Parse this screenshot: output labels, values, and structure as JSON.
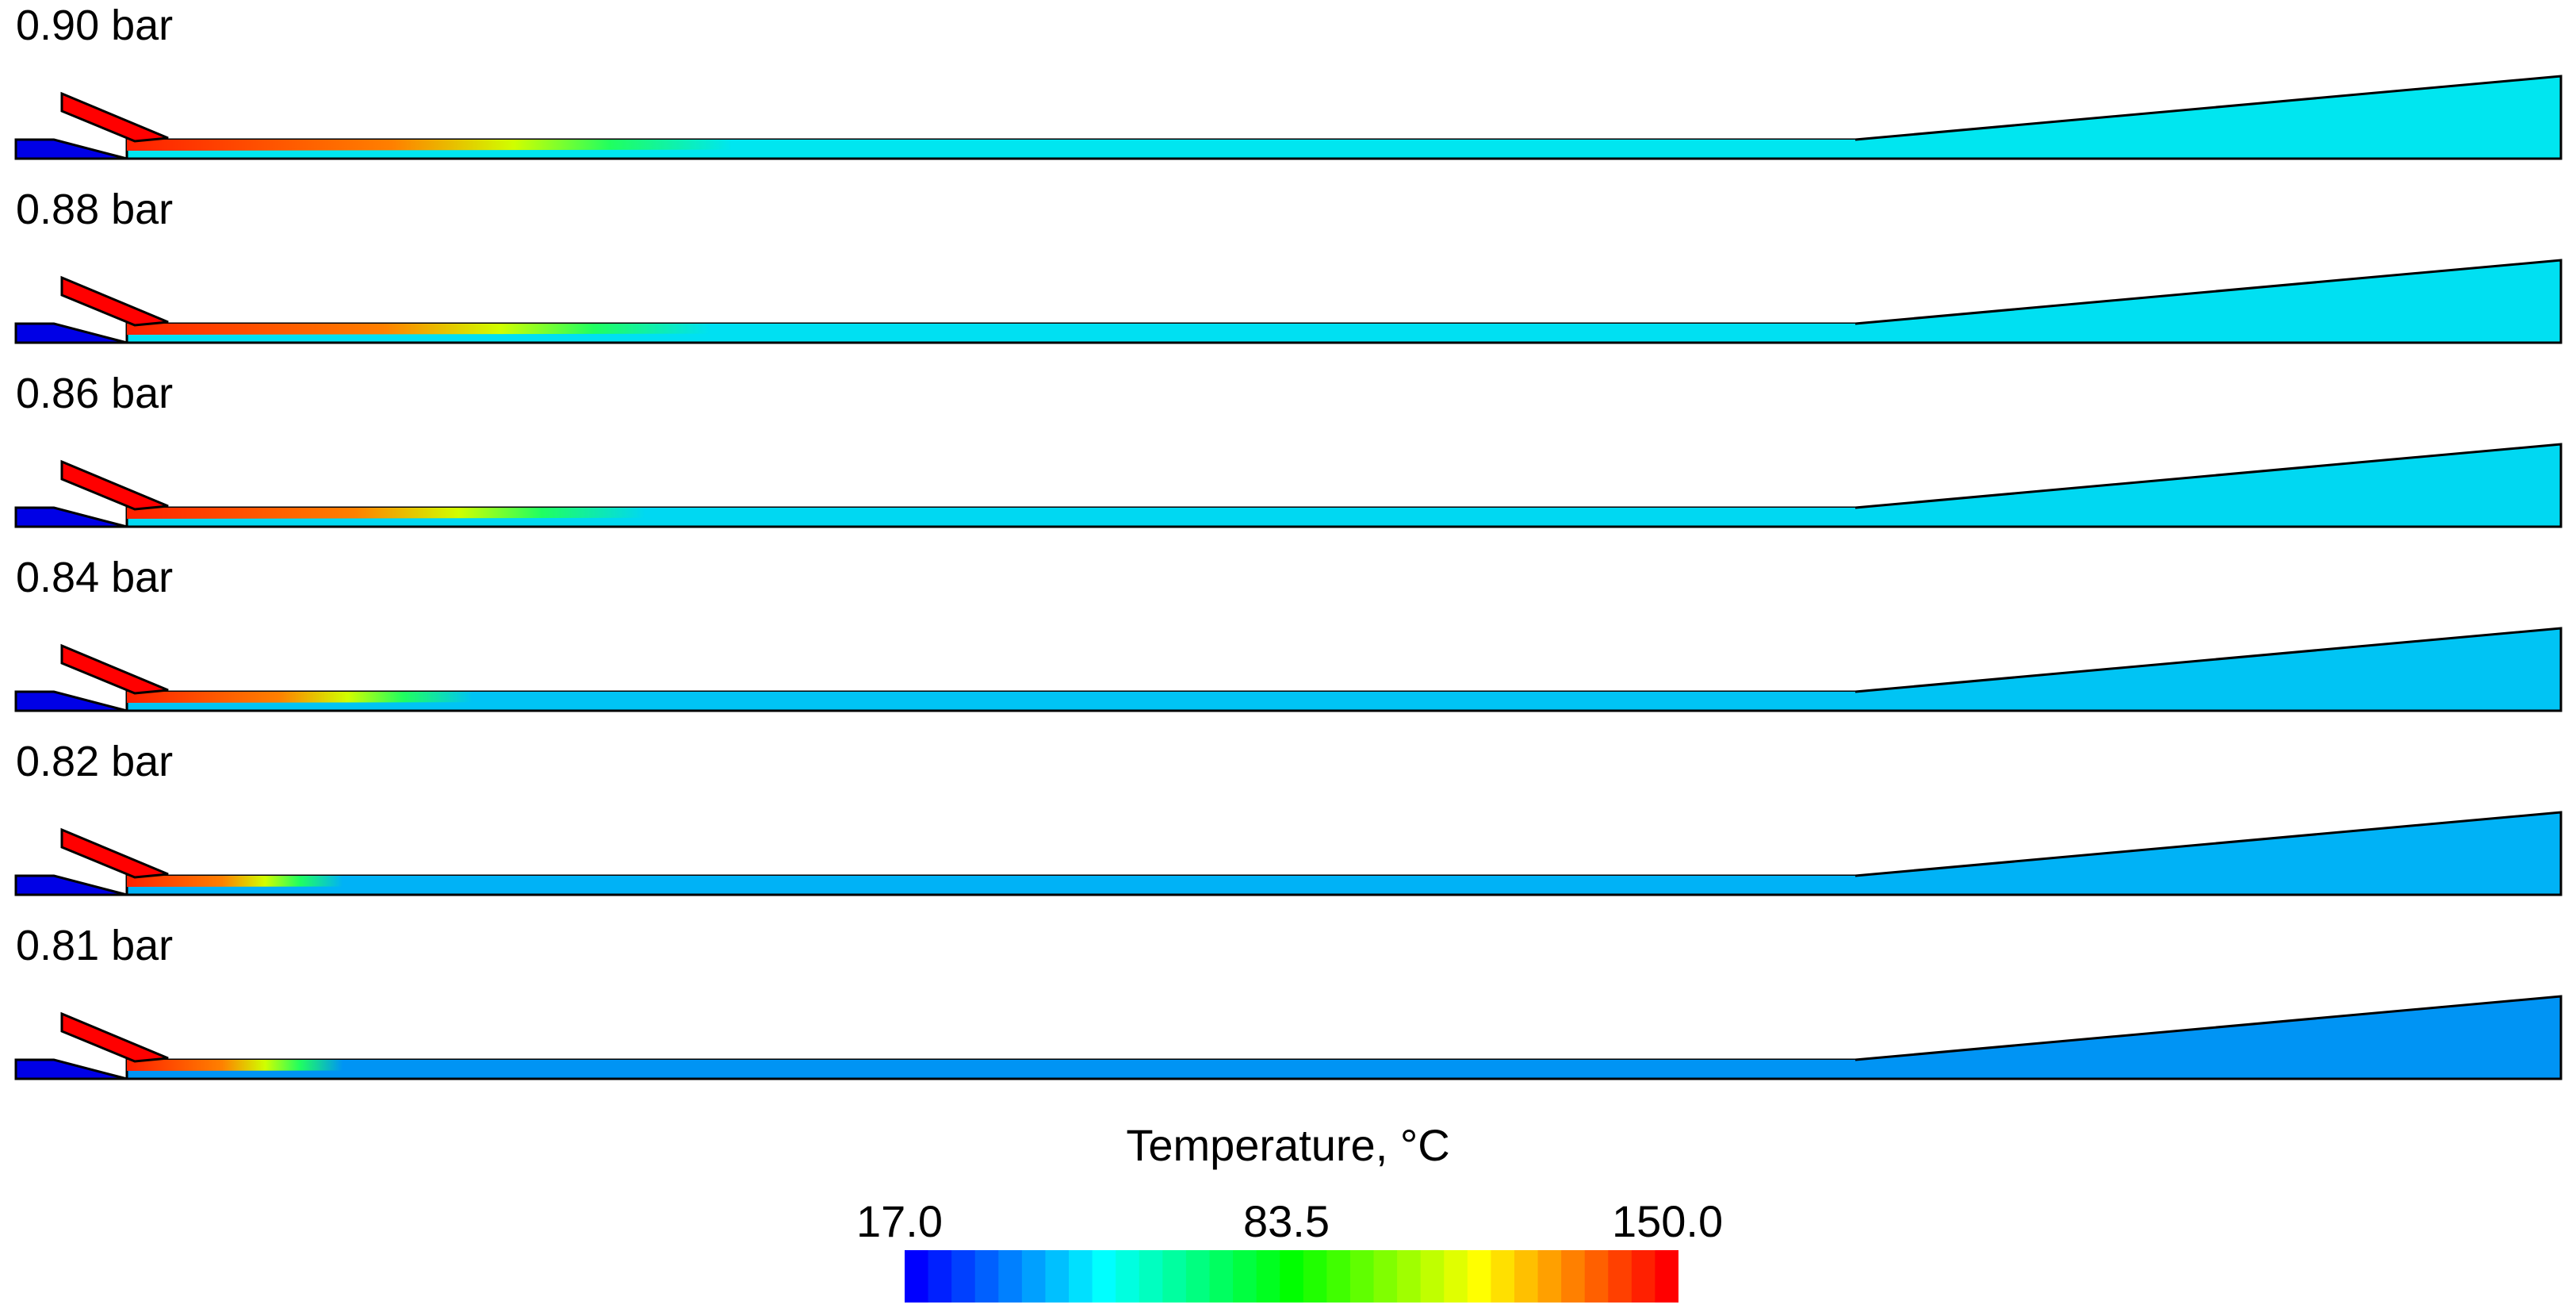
{
  "legend": {
    "title": "Temperature, °C",
    "min_label": "17.0",
    "mid_label": "83.5",
    "max_label": "150.0",
    "min_value": 17.0,
    "max_value": 150.0,
    "colors": [
      "#0000ff",
      "#0020ff",
      "#0040ff",
      "#0060ff",
      "#0080ff",
      "#00a0ff",
      "#00c0ff",
      "#00e0ff",
      "#00ffff",
      "#00ffe0",
      "#00ffc0",
      "#00ffa0",
      "#00ff80",
      "#00ff60",
      "#00ff40",
      "#00ff20",
      "#00ff00",
      "#20ff00",
      "#40ff00",
      "#60ff00",
      "#80ff00",
      "#a0ff00",
      "#c0ff00",
      "#e0ff00",
      "#ffff00",
      "#ffe000",
      "#ffc000",
      "#ffa000",
      "#ff8000",
      "#ff6000",
      "#ff4000",
      "#ff2000",
      "#ff0000"
    ]
  },
  "panels": [
    {
      "label": "0.90 bar",
      "domain_color": "#00e6f0",
      "jet_reach": 0.28
    },
    {
      "label": "0.88 bar",
      "domain_color": "#00e0f2",
      "jet_reach": 0.27
    },
    {
      "label": "0.86 bar",
      "domain_color": "#00d8f2",
      "jet_reach": 0.24
    },
    {
      "label": "0.84 bar",
      "domain_color": "#00c4f4",
      "jet_reach": 0.16
    },
    {
      "label": "0.82 bar",
      "domain_color": "#00b2f6",
      "jet_reach": 0.1
    },
    {
      "label": "0.81 bar",
      "domain_color": "#0094f4",
      "jet_reach": 0.1
    }
  ],
  "colors": {
    "inlet": "#0000e6",
    "nozzle": "#ff0000",
    "outline": "#000000"
  }
}
